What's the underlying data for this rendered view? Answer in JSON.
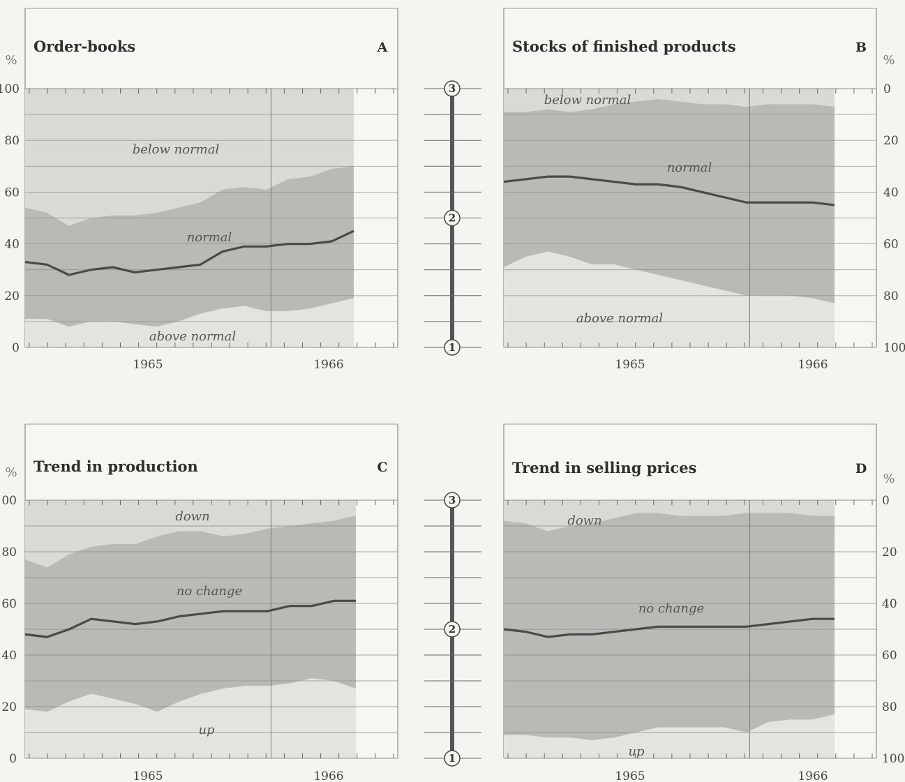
{
  "chart_data": [
    {
      "id": "A",
      "type": "area",
      "title": "Order-books",
      "letter": "A",
      "ylabel": "%",
      "axis_side": "left",
      "inverted": false,
      "ylim": [
        0,
        100
      ],
      "yticks": [
        "0",
        "20",
        "40",
        "60",
        "80",
        "100"
      ],
      "year_labels": [
        "1965",
        "1966"
      ],
      "region_labels": [
        "below normal",
        "normal",
        "above normal"
      ],
      "lower_series": [
        11,
        11,
        8,
        10,
        10,
        9,
        8,
        10,
        13,
        15,
        16,
        14,
        14,
        15,
        17,
        19
      ],
      "upper_series": [
        54,
        52,
        47,
        50,
        51,
        51,
        52,
        54,
        56,
        61,
        62,
        61,
        65,
        66,
        69,
        70
      ],
      "line_series": [
        33,
        32,
        28,
        30,
        31,
        29,
        30,
        31,
        32,
        37,
        39,
        39,
        40,
        40,
        41,
        45
      ],
      "colors": {
        "top": "#d9d9d6",
        "mid": "#b9b9b6",
        "bottom": "#e3e3e0",
        "line": "#4a4a4a"
      }
    },
    {
      "id": "B",
      "type": "area",
      "title": "Stocks of finished products",
      "letter": "B",
      "ylabel": "%",
      "axis_side": "right",
      "inverted": true,
      "ylim": [
        0,
        100
      ],
      "yticks": [
        "0",
        "20",
        "40",
        "60",
        "80",
        "100"
      ],
      "year_labels": [
        "1965",
        "1966"
      ],
      "region_labels": [
        "below normal",
        "normal",
        "above normal"
      ],
      "upper_series": [
        9,
        9,
        8,
        9,
        8,
        6,
        5,
        4,
        5,
        6,
        6,
        7,
        6,
        6,
        6,
        7
      ],
      "lower_series": [
        69,
        65,
        63,
        65,
        68,
        68,
        70,
        72,
        74,
        76,
        78,
        80,
        80,
        80,
        81,
        83
      ],
      "line_series": [
        36,
        35,
        34,
        34,
        35,
        36,
        37,
        37,
        38,
        40,
        42,
        44,
        44,
        44,
        44,
        45
      ],
      "colors": {
        "top": "#d9d9d6",
        "mid": "#b9b9b6",
        "bottom": "#e3e3e0",
        "line": "#4a4a4a"
      }
    },
    {
      "id": "C",
      "type": "area",
      "title": "Trend in production",
      "letter": "C",
      "ylabel": "%",
      "axis_side": "left",
      "inverted": false,
      "ylim": [
        0,
        100
      ],
      "yticks": [
        "0",
        "20",
        "40",
        "60",
        "80",
        "100"
      ],
      "year_labels": [
        "1965",
        "1966"
      ],
      "region_labels": [
        "down",
        "no change",
        "up"
      ],
      "lower_series": [
        19,
        18,
        22,
        25,
        23,
        21,
        18,
        22,
        25,
        27,
        28,
        28,
        29,
        31,
        30,
        27
      ],
      "upper_series": [
        77,
        74,
        79,
        82,
        83,
        83,
        86,
        88,
        88,
        86,
        87,
        89,
        90,
        91,
        92,
        94
      ],
      "line_series": [
        48,
        47,
        50,
        54,
        53,
        52,
        53,
        55,
        56,
        57,
        57,
        57,
        59,
        59,
        61,
        61
      ],
      "colors": {
        "top": "#d9d9d6",
        "mid": "#b9b9b6",
        "bottom": "#e3e3e0",
        "line": "#4a4a4a"
      }
    },
    {
      "id": "D",
      "type": "area",
      "title": "Trend in selling prices",
      "letter": "D",
      "ylabel": "%",
      "axis_side": "right",
      "inverted": true,
      "ylim": [
        0,
        100
      ],
      "yticks": [
        "0",
        "20",
        "40",
        "60",
        "80",
        "100"
      ],
      "year_labels": [
        "1965",
        "1966"
      ],
      "region_labels": [
        "down",
        "no change",
        "up"
      ],
      "upper_series": [
        8,
        9,
        12,
        10,
        9,
        7,
        5,
        5,
        6,
        6,
        6,
        5,
        5,
        5,
        6,
        6
      ],
      "lower_series": [
        91,
        91,
        92,
        92,
        93,
        92,
        90,
        88,
        88,
        88,
        88,
        90,
        86,
        85,
        85,
        83
      ],
      "line_series": [
        50,
        51,
        53,
        52,
        52,
        51,
        50,
        49,
        49,
        49,
        49,
        49,
        48,
        47,
        46,
        46
      ],
      "colors": {
        "top": "#d9d9d6",
        "mid": "#b9b9b6",
        "bottom": "#e3e3e0",
        "line": "#4a4a4a"
      }
    }
  ],
  "scales": [
    {
      "id": "top",
      "labels": [
        "3",
        "2",
        "1"
      ]
    },
    {
      "id": "bottom",
      "labels": [
        "3",
        "2",
        "1"
      ]
    }
  ]
}
